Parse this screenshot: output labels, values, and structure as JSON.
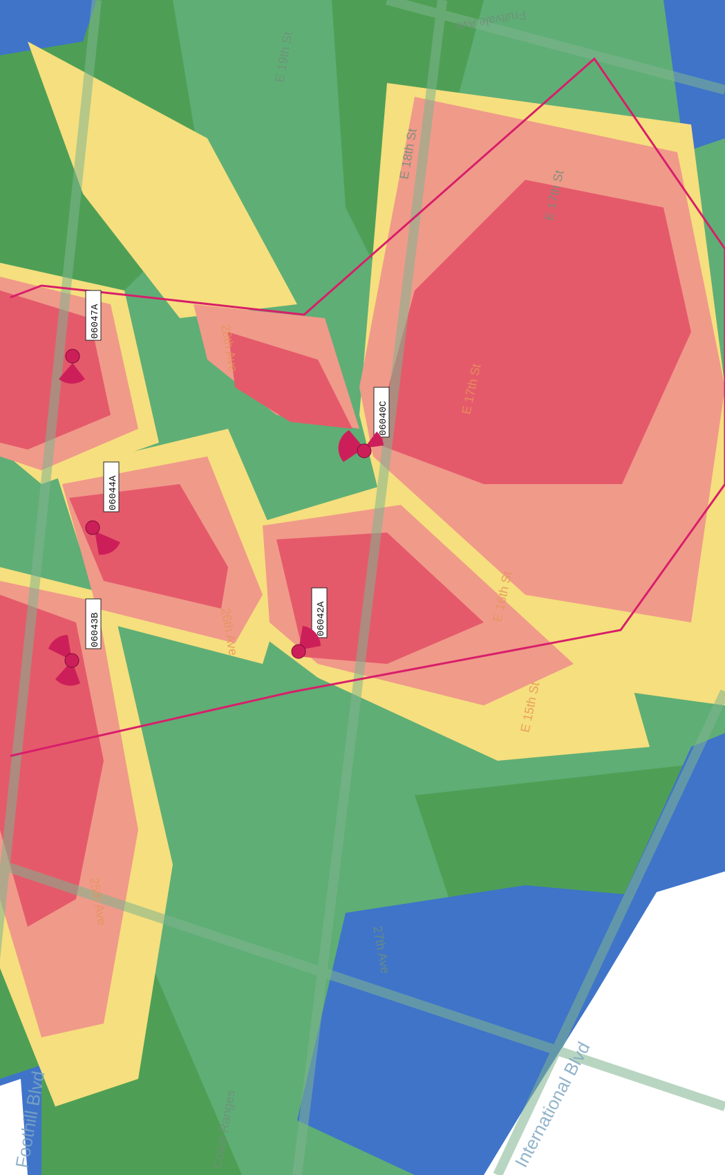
{
  "colors": {
    "excellent": "#e55a6a",
    "good": "#f09a8a",
    "fair": "#f6df7e",
    "weak": "#5fb37d",
    "poor": "#4fa14f",
    "none": "#3f74c9",
    "boundary": "#d81e6a",
    "site_marker": "#cc1f5a",
    "background": "#ffffff"
  },
  "sites": [
    {
      "id": "06047A"
    },
    {
      "id": "06040C"
    },
    {
      "id": "06044A"
    },
    {
      "id": "06043B"
    },
    {
      "id": "06042A"
    }
  ],
  "streets": [
    {
      "name": "E 19th St"
    },
    {
      "name": "E 18th St"
    },
    {
      "name": "E 17th St"
    },
    {
      "name": "E 17th St"
    },
    {
      "name": "28th Ave"
    },
    {
      "name": "26th Ave"
    },
    {
      "name": "E 16th St"
    },
    {
      "name": "E 15th St"
    },
    {
      "name": "25th Ave"
    },
    {
      "name": "27th Ave"
    },
    {
      "name": "Foothill Blvd"
    },
    {
      "name": "International Blvd"
    },
    {
      "name": "Coast Ranges"
    },
    {
      "name": "Fruitvale Ave"
    }
  ]
}
